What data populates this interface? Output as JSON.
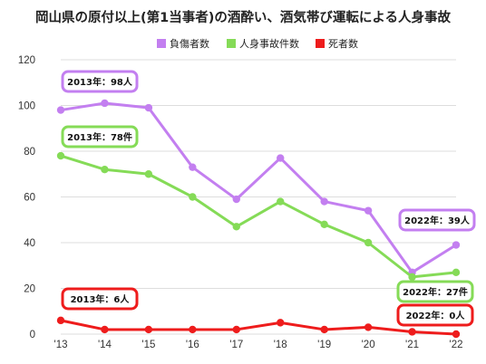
{
  "chart_data": {
    "type": "line",
    "title": "岡山県の原付以上(第1当事者)の酒酔い、酒気帯び運転による人身事故",
    "categories": [
      "'13",
      "'14",
      "'15",
      "'16",
      "'17",
      "'18",
      "'19",
      "'20",
      "'21",
      "'22"
    ],
    "y_ticks": [
      "0",
      "20",
      "40",
      "60",
      "80",
      "100",
      "120"
    ],
    "ylim": [
      0,
      120
    ],
    "grid": true,
    "legend_position": "top",
    "series": [
      {
        "name": "負傷者数",
        "color": "#c37ff0",
        "values": [
          98,
          101,
          99,
          73,
          59,
          77,
          58,
          54,
          27,
          39
        ]
      },
      {
        "name": "人身事故件数",
        "color": "#85db57",
        "values": [
          78,
          72,
          70,
          60,
          47,
          58,
          48,
          40,
          25,
          27
        ]
      },
      {
        "name": "死者数",
        "color": "#ee1c1c",
        "values": [
          6,
          2,
          2,
          2,
          2,
          5,
          2,
          3,
          1,
          0
        ]
      }
    ],
    "annotations": [
      {
        "text": "2013年：98人",
        "color": "#c37ff0"
      },
      {
        "text": "2013年：78件",
        "color": "#85db57"
      },
      {
        "text": "2013年：6人",
        "color": "#ee1c1c"
      },
      {
        "text": "2022年：39人",
        "color": "#c37ff0"
      },
      {
        "text": "2022年：27件",
        "color": "#85db57"
      },
      {
        "text": "2022年：0人",
        "color": "#ee1c1c"
      }
    ]
  }
}
